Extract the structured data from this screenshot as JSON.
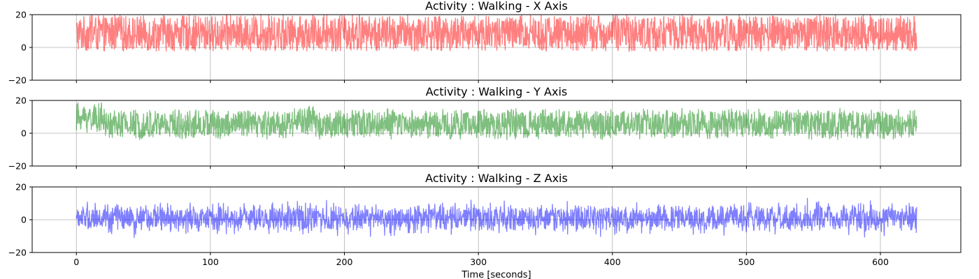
{
  "chart_data": [
    {
      "type": "line",
      "title": "Activity : Walking - X Axis",
      "ylim": [
        -20,
        20
      ],
      "yticks": [
        -20,
        0,
        20
      ],
      "xlim": [
        -33,
        660
      ],
      "xticks": [
        0,
        100,
        200,
        300,
        400,
        500,
        600
      ],
      "xlabel": "",
      "grid": true,
      "color": "#ff0000",
      "alpha": 0.5,
      "series": [
        {
          "x_range": [
            0,
            627
          ],
          "approx_mean": 8.5,
          "approx_min": -4,
          "approx_max": 20,
          "clipped_at_top": true
        }
      ]
    },
    {
      "type": "line",
      "title": "Activity : Walking - Y Axis",
      "ylim": [
        -20,
        20
      ],
      "yticks": [
        -20,
        0,
        20
      ],
      "xlim": [
        -33,
        660
      ],
      "xticks": [
        0,
        100,
        200,
        300,
        400,
        500,
        600
      ],
      "xlabel": "",
      "grid": true,
      "color": "#008000",
      "alpha": 0.5,
      "series": [
        {
          "x_range": [
            0,
            627
          ],
          "approx_mean": 5.5,
          "approx_min": -8,
          "approx_max": 20
        }
      ]
    },
    {
      "type": "line",
      "title": "Activity : Walking - Z Axis",
      "ylim": [
        -20,
        20
      ],
      "yticks": [
        -20,
        0,
        20
      ],
      "xlim": [
        -33,
        660
      ],
      "xticks": [
        0,
        100,
        200,
        300,
        400,
        500,
        600
      ],
      "xlabel": "Time [seconds]",
      "grid": true,
      "color": "#0000ff",
      "alpha": 0.5,
      "series": [
        {
          "x_range": [
            0,
            627
          ],
          "approx_mean": 1,
          "approx_min": -15,
          "approx_max": 14
        }
      ]
    }
  ]
}
